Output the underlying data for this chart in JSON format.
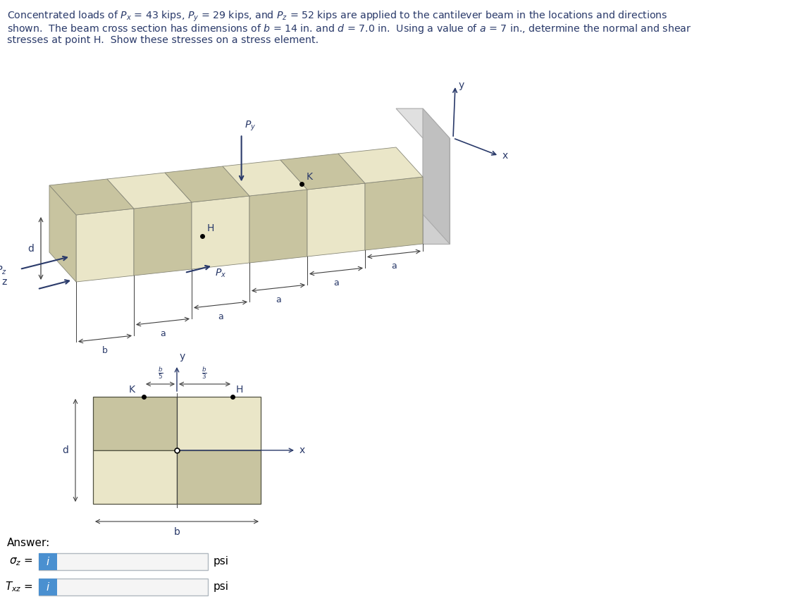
{
  "title_line1": "Concentrated loads of $P_x$ = 43 kips, $P_y$ = 29 kips, and $P_z$ = 52 kips are applied to the cantilever beam in the locations and directions",
  "title_line2": "shown.  The beam cross section has dimensions of $b$ = 14 in. and $d$ = 7.0 in.  Using a value of $a$ = 7 in., determine the normal and shear",
  "title_line3": "stresses at point H.  Show these stresses on a stress element.",
  "answer_label": "Answer:",
  "sigma_label": "$\\sigma_z$ =",
  "tau_label": "$T_{xz}$ =",
  "bg_color": "#ffffff",
  "beam_light": "#eae6c8",
  "beam_dark": "#c8c4a0",
  "wall_front": "#d8d8d8",
  "wall_top": "#e8e8e8",
  "wall_side": "#c0c0c0",
  "text_color": "#2a3a6a",
  "arrow_color": "#2a3a6a",
  "input_blue": "#4a90d0",
  "dim_color": "#404040"
}
